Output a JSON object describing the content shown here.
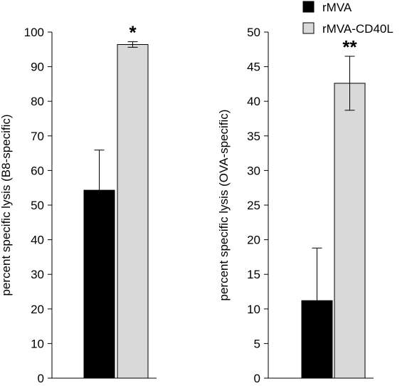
{
  "legend": [
    {
      "label": "rMVA",
      "color": "#000000"
    },
    {
      "label": "rMVA-CD40L",
      "color": "#d9d9d9"
    }
  ],
  "chart_data": [
    {
      "type": "bar",
      "categories": [
        "rMVA",
        "rMVA-CD40L"
      ],
      "values": [
        54.3,
        96.4
      ],
      "errors": [
        11.6,
        0.8
      ],
      "colors": [
        "#000000",
        "#d9d9d9"
      ],
      "ylabel": "percent specific lysis (B8-specific)",
      "ylim": [
        0,
        100
      ],
      "yticks": [
        0,
        10,
        20,
        30,
        40,
        50,
        60,
        70,
        80,
        90,
        100
      ],
      "annotations": [
        "",
        "*"
      ],
      "grid": false
    },
    {
      "type": "bar",
      "categories": [
        "rMVA",
        "rMVA-CD40L"
      ],
      "values": [
        11.2,
        42.6
      ],
      "errors": [
        7.6,
        3.9
      ],
      "colors": [
        "#000000",
        "#d9d9d9"
      ],
      "ylabel": "percent specific lysis (OVA-specific)",
      "ylim": [
        0,
        50
      ],
      "yticks": [
        0,
        5,
        10,
        15,
        20,
        25,
        30,
        35,
        40,
        45,
        50
      ],
      "annotations": [
        "",
        "**"
      ],
      "grid": false
    }
  ]
}
